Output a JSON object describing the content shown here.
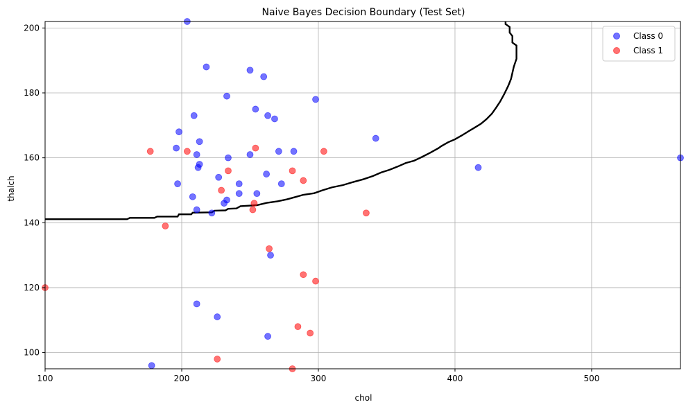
{
  "chart_data": {
    "type": "scatter",
    "title": "Naive Bayes Decision Boundary (Test Set)",
    "xlabel": "chol",
    "ylabel": "thalch",
    "xlim": [
      100,
      565
    ],
    "ylim": [
      95,
      202
    ],
    "xticks": [
      100,
      200,
      300,
      400,
      500
    ],
    "yticks": [
      100,
      120,
      140,
      160,
      180,
      200
    ],
    "grid": true,
    "legend_position": "top-right",
    "series": [
      {
        "name": "Class 0",
        "color": "#0000ff",
        "points": [
          [
            204,
            202
          ],
          [
            218,
            188
          ],
          [
            250,
            187
          ],
          [
            260,
            185
          ],
          [
            233,
            179
          ],
          [
            298,
            178
          ],
          [
            254,
            175
          ],
          [
            209,
            173
          ],
          [
            263,
            173
          ],
          [
            268,
            172
          ],
          [
            198,
            168
          ],
          [
            342,
            166
          ],
          [
            213,
            165
          ],
          [
            196,
            163
          ],
          [
            271,
            162
          ],
          [
            282,
            162
          ],
          [
            211,
            161
          ],
          [
            250,
            161
          ],
          [
            234,
            160
          ],
          [
            565,
            160
          ],
          [
            213,
            158
          ],
          [
            212,
            157
          ],
          [
            417,
            157
          ],
          [
            262,
            155
          ],
          [
            227,
            154
          ],
          [
            197,
            152
          ],
          [
            242,
            152
          ],
          [
            273,
            152
          ],
          [
            255,
            149
          ],
          [
            242,
            149
          ],
          [
            208,
            148
          ],
          [
            233,
            147
          ],
          [
            231,
            146
          ],
          [
            211,
            144
          ],
          [
            222,
            143
          ],
          [
            265,
            130
          ],
          [
            211,
            115
          ],
          [
            226,
            111
          ],
          [
            263,
            105
          ],
          [
            178,
            96
          ]
        ]
      },
      {
        "name": "Class 1",
        "color": "#ff0000",
        "points": [
          [
            177,
            162
          ],
          [
            204,
            162
          ],
          [
            254,
            163
          ],
          [
            304,
            162
          ],
          [
            234,
            156
          ],
          [
            281,
            156
          ],
          [
            289,
            153
          ],
          [
            229,
            150
          ],
          [
            253,
            146
          ],
          [
            252,
            144
          ],
          [
            335,
            143
          ],
          [
            188,
            139
          ],
          [
            264,
            132
          ],
          [
            100,
            120
          ],
          [
            289,
            124
          ],
          [
            298,
            122
          ],
          [
            285,
            108
          ],
          [
            294,
            106
          ],
          [
            226,
            98
          ],
          [
            281,
            95
          ]
        ]
      }
    ],
    "decision_boundary": {
      "color": "#000000",
      "points": [
        [
          100,
          141.1
        ],
        [
          160,
          141.1
        ],
        [
          162,
          141.5
        ],
        [
          180,
          141.5
        ],
        [
          182,
          141.9
        ],
        [
          197,
          141.9
        ],
        [
          198,
          142.6
        ],
        [
          207,
          142.6
        ],
        [
          208,
          143.1
        ],
        [
          222,
          143.2
        ],
        [
          224,
          143.7
        ],
        [
          232,
          143.8
        ],
        [
          234,
          144.3
        ],
        [
          240,
          144.4
        ],
        [
          243,
          145.1
        ],
        [
          255,
          145.4
        ],
        [
          262,
          146.1
        ],
        [
          270,
          146.6
        ],
        [
          277,
          147.2
        ],
        [
          283,
          147.9
        ],
        [
          289,
          148.6
        ],
        [
          297,
          149.1
        ],
        [
          303,
          150.0
        ],
        [
          310,
          150.9
        ],
        [
          318,
          151.6
        ],
        [
          326,
          152.6
        ],
        [
          333,
          153.4
        ],
        [
          340,
          154.4
        ],
        [
          346,
          155.5
        ],
        [
          352,
          156.3
        ],
        [
          358,
          157.3
        ],
        [
          364,
          158.4
        ],
        [
          370,
          159.1
        ],
        [
          376,
          160.3
        ],
        [
          382,
          161.6
        ],
        [
          388,
          163.0
        ],
        [
          390,
          163.6
        ],
        [
          395,
          164.8
        ],
        [
          400,
          165.7
        ],
        [
          405,
          166.9
        ],
        [
          410,
          168.2
        ],
        [
          414,
          169.2
        ],
        [
          419,
          170.5
        ],
        [
          423,
          171.9
        ],
        [
          427,
          173.6
        ],
        [
          430,
          175.4
        ],
        [
          433,
          177.3
        ],
        [
          436,
          179.6
        ],
        [
          439,
          182.2
        ],
        [
          441,
          184.3
        ],
        [
          443,
          188.0
        ],
        [
          445,
          190.5
        ],
        [
          445,
          194.6
        ],
        [
          442,
          195.5
        ],
        [
          442,
          197.5
        ],
        [
          440,
          198.6
        ],
        [
          440,
          200.3
        ],
        [
          437,
          201.2
        ],
        [
          437,
          202
        ]
      ]
    }
  }
}
